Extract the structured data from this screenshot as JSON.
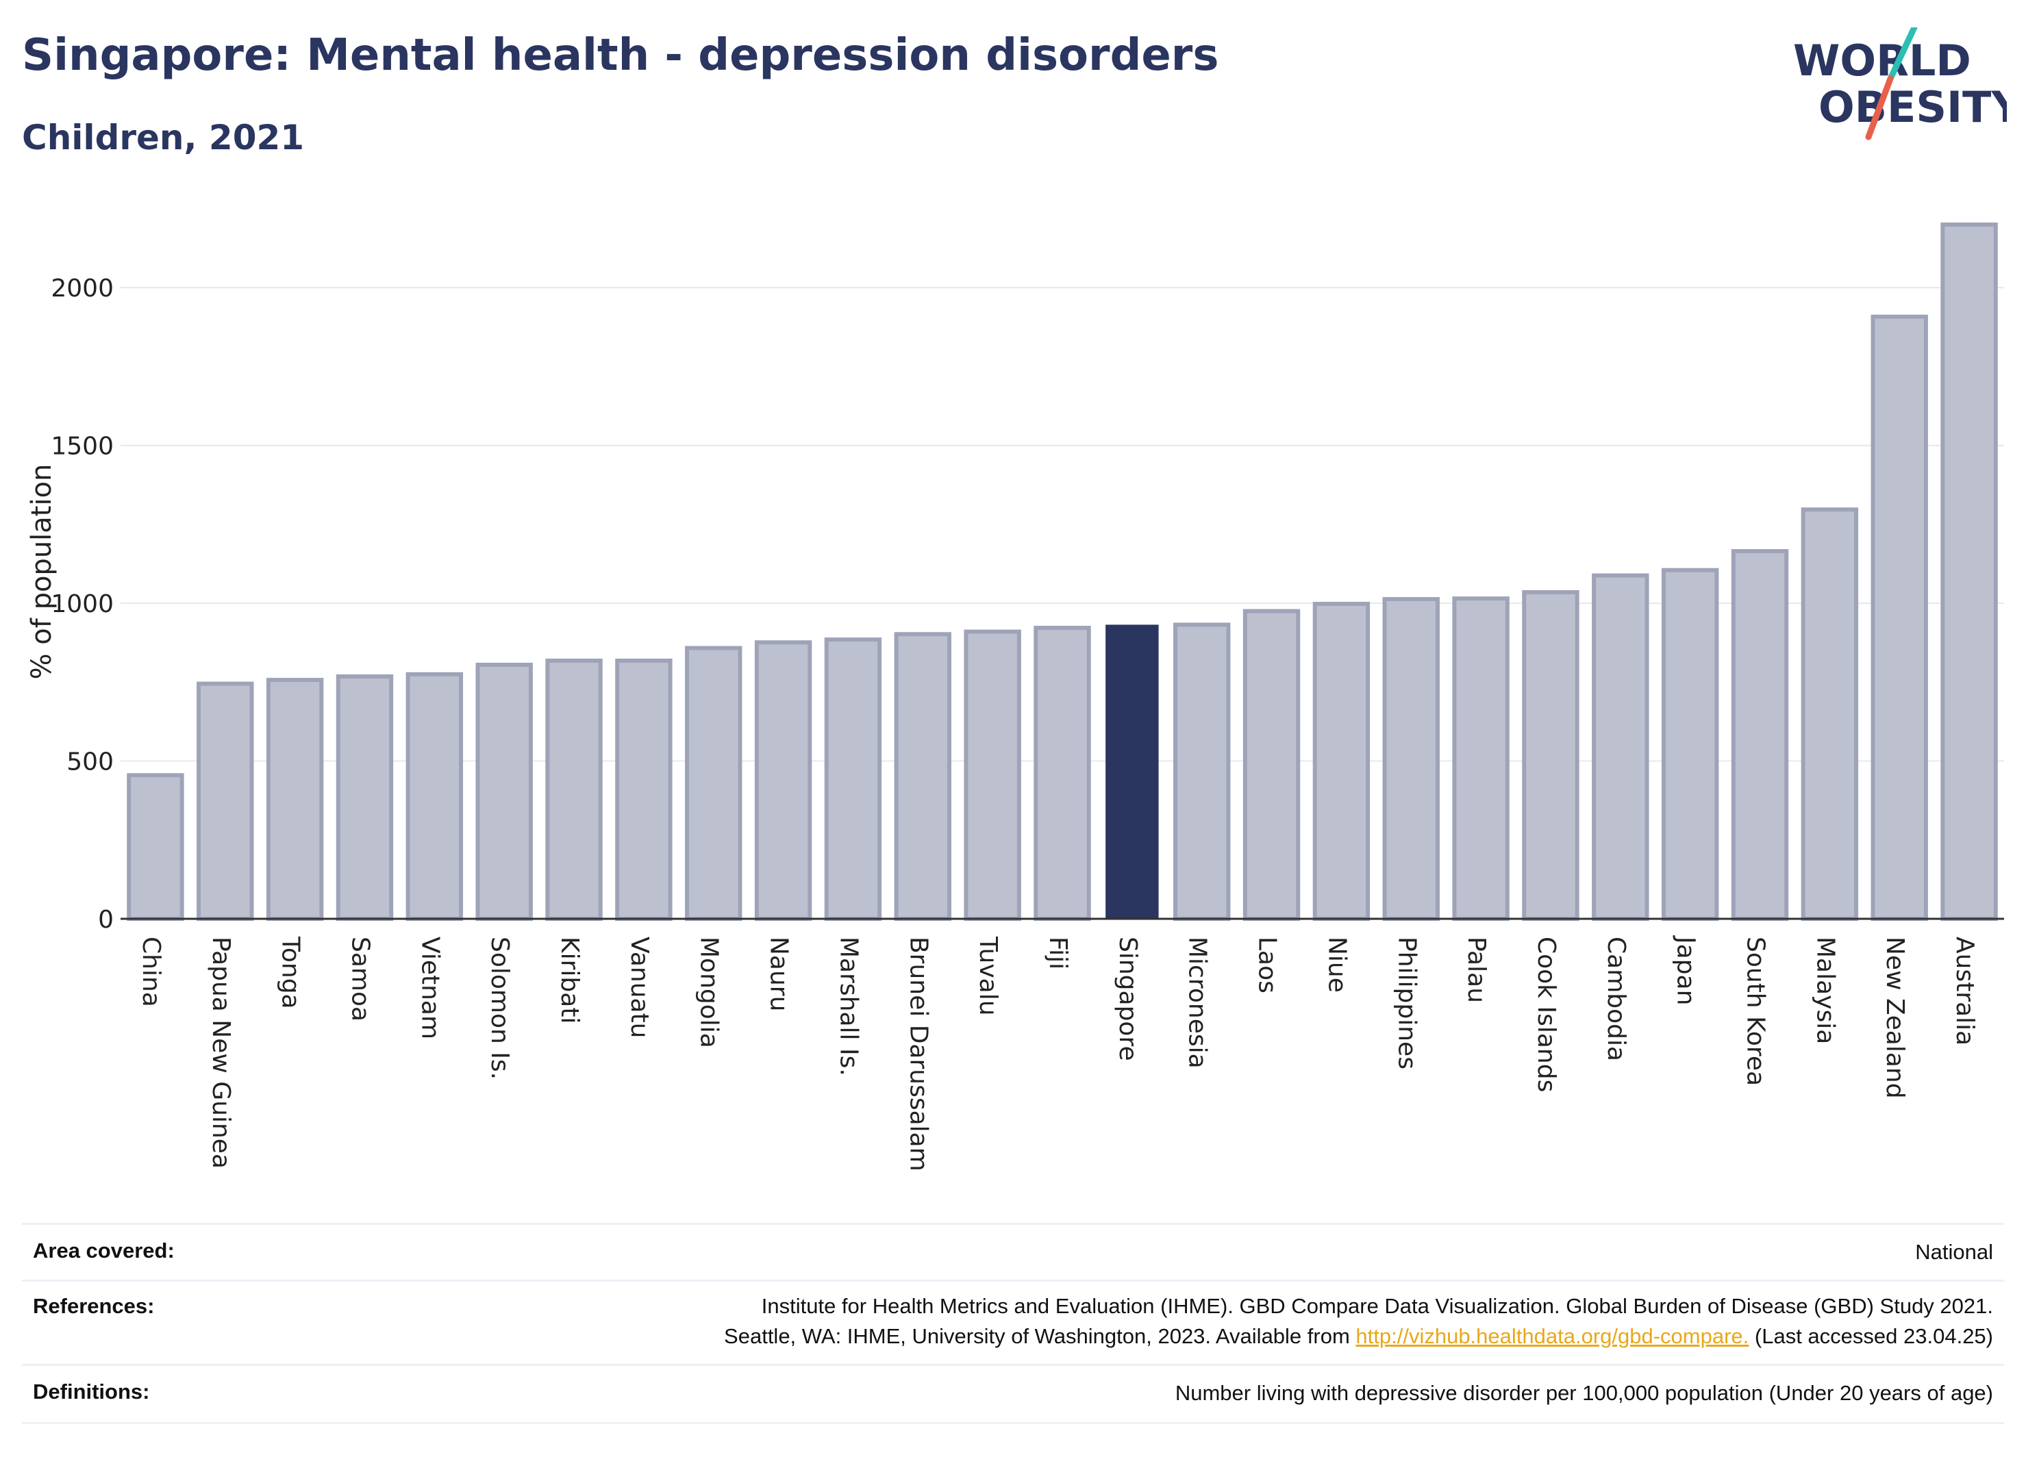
{
  "header": {
    "title": "Singapore: Mental health - depression disorders",
    "subtitle": "Children, 2021"
  },
  "logo": {
    "line1": "WORLD",
    "line2": "OBESITY",
    "colors": {
      "text": "#2a3560",
      "slash_top": "#2bbfb3",
      "slash_bottom": "#e8604c"
    }
  },
  "chart_data": {
    "type": "bar",
    "title": "Singapore: Mental health - depression disorders",
    "subtitle": "Children, 2021",
    "xlabel": "",
    "ylabel": "% of population",
    "ylim": [
      0,
      2200
    ],
    "yticks": [
      0,
      500,
      1000,
      1500,
      2000
    ],
    "grid": true,
    "highlight": "Singapore",
    "colors": {
      "bar": "#bdc1cf",
      "bar_edge": "#9ea3b8",
      "highlight": "#2a3560",
      "grid": "#e6e8ef",
      "axis": "#333333"
    },
    "categories": [
      "China",
      "Papua New Guinea",
      "Tonga",
      "Samoa",
      "Vietnam",
      "Solomon Is.",
      "Kiribati",
      "Vanuatu",
      "Mongolia",
      "Nauru",
      "Marshall Is.",
      "Brunei Darussalam",
      "Tuvalu",
      "Fiji",
      "Singapore",
      "Micronesia",
      "Laos",
      "Niue",
      "Philippines",
      "Palau",
      "Cook Islands",
      "Cambodia",
      "Japan",
      "South Korea",
      "Malaysia",
      "New Zealand",
      "Australia"
    ],
    "values": [
      455,
      745,
      757,
      768,
      775,
      805,
      818,
      818,
      858,
      876,
      885,
      902,
      910,
      922,
      932,
      932,
      975,
      998,
      1013,
      1015,
      1035,
      1088,
      1105,
      1165,
      1297,
      1908,
      2200
    ]
  },
  "footer": {
    "area": {
      "label": "Area covered:",
      "value": "National"
    },
    "references": {
      "label": "References:",
      "line1": "Institute for Health Metrics and Evaluation (IHME). GBD Compare Data Visualization. Global Burden of Disease (GBD) Study 2021.",
      "line2_prefix": "Seattle, WA: IHME, University of Washington, 2023. Available from ",
      "link": "http://vizhub.healthdata.org/gbd-compare.",
      "line2_suffix": " (Last accessed 23.04.25)"
    },
    "definitions": {
      "label": "Definitions:",
      "value": "Number living with depressive disorder per 100,000 population (Under 20 years of age)"
    }
  }
}
